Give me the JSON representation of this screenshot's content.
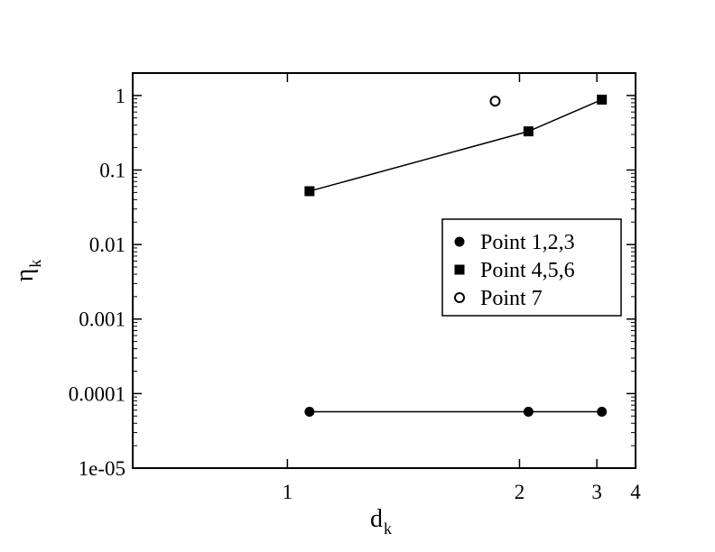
{
  "chart_data": {
    "type": "scatter",
    "xscale": "reciprocal",
    "xlim": [
      0.75,
      4
    ],
    "yscale": "log",
    "ylim": [
      1e-05,
      2
    ],
    "x_ticks": [
      {
        "value": 1,
        "label": "1"
      },
      {
        "value": 2,
        "label": "2"
      },
      {
        "value": 3,
        "label": "3"
      },
      {
        "value": 4,
        "label": "4"
      }
    ],
    "y_ticks": [
      {
        "value": 1e-05,
        "label": "1e-05"
      },
      {
        "value": 0.0001,
        "label": "0.0001"
      },
      {
        "value": 0.001,
        "label": "0.001"
      },
      {
        "value": 0.01,
        "label": "0.01"
      },
      {
        "value": 0.1,
        "label": "0.1"
      },
      {
        "value": 1,
        "label": "1"
      }
    ],
    "xlabel": {
      "main": "d",
      "sub": "k"
    },
    "ylabel": {
      "main": "η",
      "sub": "k"
    },
    "legend_position": "right-middle",
    "grid": false,
    "series": [
      {
        "name": "Point 1,2,3",
        "marker": "filled-circle",
        "line": true,
        "points": [
          {
            "x": 1.05,
            "y": 5.7e-05
          },
          {
            "x": 2.08,
            "y": 5.7e-05
          },
          {
            "x": 3.1,
            "y": 5.7e-05
          }
        ]
      },
      {
        "name": "Point 4,5,6",
        "marker": "filled-square",
        "line": true,
        "points": [
          {
            "x": 1.05,
            "y": 0.052
          },
          {
            "x": 2.08,
            "y": 0.33
          },
          {
            "x": 3.1,
            "y": 0.88
          }
        ]
      },
      {
        "name": "Point 7",
        "marker": "open-circle",
        "line": false,
        "points": [
          {
            "x": 1.81,
            "y": 0.84
          }
        ]
      }
    ]
  }
}
